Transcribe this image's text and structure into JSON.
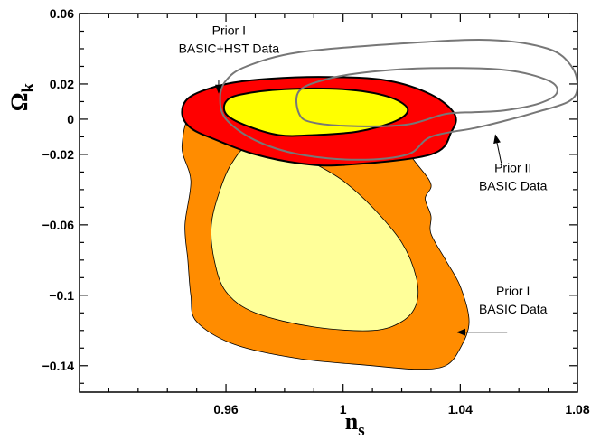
{
  "chart_data": {
    "type": "contour",
    "xlabel": "n",
    "xlabel_sub": "s",
    "ylabel": "Ω",
    "ylabel_sub": "k",
    "xlim": [
      0.91,
      1.08
    ],
    "ylim": [
      -0.155,
      0.06
    ],
    "xticks": [
      0.96,
      1,
      1.04,
      1.08
    ],
    "xtick_labels": [
      "0.96",
      "1",
      "1.04",
      "1.08"
    ],
    "yticks": [
      0.06,
      0.02,
      0,
      -0.02,
      -0.06,
      -0.1,
      -0.14
    ],
    "ytick_labels": [
      "0.06",
      "0.02",
      "0",
      "−0.02",
      "−0.06",
      "−0.1",
      "−0.14"
    ],
    "colors": {
      "orange_outer": "#ff8c00",
      "orange_inner": "#ffff99",
      "red_outer": "#ff0000",
      "red_inner": "#ffff00",
      "gray_line": "#777777"
    },
    "series": [
      {
        "id": "prior1-basic",
        "fill_outer": "#ff8c00",
        "fill_inner": "#ffff99",
        "outer": [
          [
            0.95,
            0.005
          ],
          [
            0.945,
            -0.015
          ],
          [
            0.948,
            -0.035
          ],
          [
            0.946,
            -0.06
          ],
          [
            0.947,
            -0.08
          ],
          [
            0.948,
            -0.1
          ],
          [
            0.95,
            -0.115
          ],
          [
            0.963,
            -0.128
          ],
          [
            0.985,
            -0.136
          ],
          [
            1.01,
            -0.14
          ],
          [
            1.025,
            -0.142
          ],
          [
            1.035,
            -0.14
          ],
          [
            1.04,
            -0.13
          ],
          [
            1.043,
            -0.115
          ],
          [
            1.04,
            -0.095
          ],
          [
            1.035,
            -0.08
          ],
          [
            1.03,
            -0.065
          ],
          [
            1.03,
            -0.055
          ],
          [
            1.028,
            -0.045
          ],
          [
            1.03,
            -0.037
          ],
          [
            1.025,
            -0.025
          ],
          [
            1.02,
            -0.015
          ],
          [
            1.015,
            -0.008
          ],
          [
            1.0,
            -0.005
          ],
          [
            0.97,
            0.002
          ],
          [
            0.95,
            0.005
          ]
        ],
        "inner": [
          [
            0.968,
            -0.015
          ],
          [
            0.962,
            -0.025
          ],
          [
            0.958,
            -0.04
          ],
          [
            0.955,
            -0.06
          ],
          [
            0.956,
            -0.08
          ],
          [
            0.96,
            -0.098
          ],
          [
            0.97,
            -0.11
          ],
          [
            0.99,
            -0.118
          ],
          [
            1.01,
            -0.12
          ],
          [
            1.02,
            -0.115
          ],
          [
            1.025,
            -0.105
          ],
          [
            1.025,
            -0.09
          ],
          [
            1.02,
            -0.07
          ],
          [
            1.01,
            -0.05
          ],
          [
            1.0,
            -0.035
          ],
          [
            0.99,
            -0.025
          ],
          [
            0.98,
            -0.017
          ],
          [
            0.968,
            -0.015
          ]
        ]
      },
      {
        "id": "prior1-basic-hst",
        "fill_outer": "#ff0000",
        "fill_inner": "#ffff00",
        "outer": [
          [
            0.948,
            0.013
          ],
          [
            0.96,
            0.02
          ],
          [
            0.975,
            0.023
          ],
          [
            0.995,
            0.024
          ],
          [
            1.015,
            0.022
          ],
          [
            1.03,
            0.014
          ],
          [
            1.038,
            0.003
          ],
          [
            1.037,
            -0.007
          ],
          [
            1.03,
            -0.02
          ],
          [
            1.0,
            -0.026
          ],
          [
            0.985,
            -0.025
          ],
          [
            0.97,
            -0.02
          ],
          [
            0.957,
            -0.012
          ],
          [
            0.948,
            -0.005
          ],
          [
            0.945,
            0.004
          ],
          [
            0.948,
            0.013
          ]
        ],
        "inner": [
          [
            0.96,
            0.01
          ],
          [
            0.965,
            0.014
          ],
          [
            0.98,
            0.017
          ],
          [
            1.0,
            0.017
          ],
          [
            1.015,
            0.013
          ],
          [
            1.022,
            0.006
          ],
          [
            1.018,
            -0.001
          ],
          [
            1.005,
            -0.007
          ],
          [
            0.99,
            -0.009
          ],
          [
            0.978,
            -0.009
          ],
          [
            0.966,
            -0.003
          ],
          [
            0.96,
            0.003
          ],
          [
            0.96,
            0.01
          ]
        ]
      },
      {
        "id": "prior2-basic",
        "stroke": "#777777",
        "outer": [
          [
            0.96,
            0.022
          ],
          [
            0.967,
            0.03
          ],
          [
            0.985,
            0.038
          ],
          [
            1.02,
            0.043
          ],
          [
            1.05,
            0.045
          ],
          [
            1.07,
            0.04
          ],
          [
            1.078,
            0.03
          ],
          [
            1.08,
            0.018
          ],
          [
            1.077,
            0.01
          ],
          [
            1.066,
            0.004
          ],
          [
            1.055,
            -0.001
          ],
          [
            1.045,
            -0.005
          ],
          [
            1.03,
            -0.01
          ],
          [
            1.022,
            -0.02
          ],
          [
            1.005,
            -0.023
          ],
          [
            0.985,
            -0.02
          ],
          [
            0.97,
            -0.012
          ],
          [
            0.96,
            0.0
          ],
          [
            0.958,
            0.012
          ],
          [
            0.96,
            0.022
          ]
        ],
        "inner": [
          [
            0.985,
            0.016
          ],
          [
            0.995,
            0.023
          ],
          [
            1.01,
            0.027
          ],
          [
            1.03,
            0.029
          ],
          [
            1.055,
            0.028
          ],
          [
            1.07,
            0.022
          ],
          [
            1.073,
            0.015
          ],
          [
            1.067,
            0.009
          ],
          [
            1.055,
            0.005
          ],
          [
            1.045,
            0.004
          ],
          [
            1.035,
            0.003
          ],
          [
            1.022,
            -0.003
          ],
          [
            1.005,
            -0.004
          ],
          [
            0.99,
            -0.002
          ],
          [
            0.985,
            0.003
          ],
          [
            0.985,
            0.016
          ]
        ]
      }
    ],
    "annotations": [
      {
        "id": "prior1-hst",
        "lines": [
          "Prior I",
          "BASIC+HST Data"
        ],
        "x": 0.961,
        "y": 0.048,
        "anchor": "middle",
        "arrow_from": [
          0.9575,
          0.022
        ],
        "arrow_to": [
          0.9575,
          0.015
        ]
      },
      {
        "id": "prior2",
        "lines": [
          "Prior II",
          "BASIC Data"
        ],
        "x": 1.058,
        "y": -0.03,
        "anchor": "middle",
        "arrow_from": [
          1.054,
          -0.025
        ],
        "arrow_to": [
          1.052,
          -0.009
        ]
      },
      {
        "id": "prior1-basic",
        "lines": [
          "Prior I",
          "BASIC Data"
        ],
        "x": 1.058,
        "y": -0.1,
        "anchor": "middle",
        "arrow_from": [
          1.056,
          -0.121
        ],
        "arrow_to": [
          1.039,
          -0.121
        ]
      }
    ]
  }
}
